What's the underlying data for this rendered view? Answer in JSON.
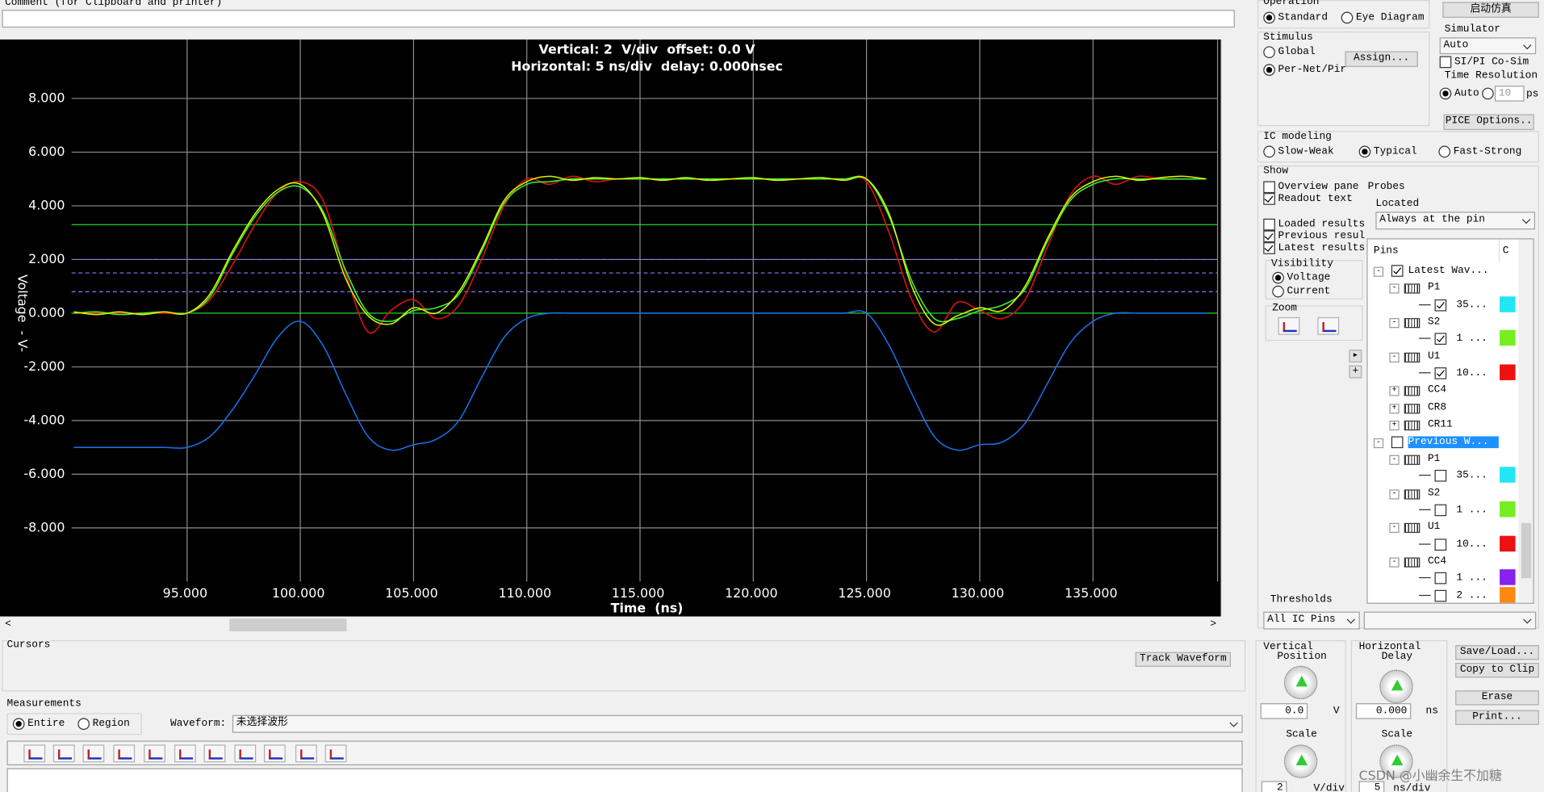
{
  "comment": {
    "label": "Comment (for Clipboard and printer)"
  },
  "operation": {
    "title": "Operation",
    "options": [
      "Standard",
      "Eye Diagram"
    ]
  },
  "run_button": "启动仿真",
  "simulator": {
    "title": "Simulator",
    "select": "Auto",
    "co_sim": "SI/PI Co-Sim",
    "time_resolution": "Time Resolution",
    "auto": "Auto",
    "resolution": "10",
    "unit": "ps",
    "options_button": "PICE Options.."
  },
  "stimulus": {
    "title": "Stimulus",
    "options": [
      "Global",
      "Per-Net/Pir"
    ],
    "assign": "Assign..."
  },
  "ic_modeling": {
    "title": "IC modeling",
    "options": [
      "Slow-Weak",
      "Typical",
      "Fast-Strong"
    ]
  },
  "show": {
    "title": "Show",
    "options": [
      "Overview pane",
      "Readout text"
    ],
    "probes": "Probes",
    "located": "Located",
    "located_select": "Always at the pin",
    "results": [
      "Loaded results",
      "Previous resul",
      "Latest results"
    ]
  },
  "visibility": {
    "title": "Visibility",
    "options": [
      "Voltage",
      "Current"
    ]
  },
  "zoom": {
    "title": "Zoom"
  },
  "tree": {
    "header": [
      "Pins",
      "C"
    ],
    "rows": [
      "Latest Wav...",
      "P1",
      "35...",
      "S2",
      "1 ...",
      "U1",
      "10...",
      "CC4",
      "CR8",
      "CR11",
      "Previous W...",
      "P1",
      "35...",
      "S2",
      "1 ...",
      "U1",
      "10...",
      "CC4",
      "1 ...",
      "2 ..."
    ]
  },
  "thresholds": {
    "title": "Thresholds",
    "select": "All IC Pins"
  },
  "vertical": {
    "title": "Vertical",
    "subtitle": "Position",
    "position": "0.0",
    "unit": "V",
    "scale_label": "Scale",
    "scale": "2",
    "scale_unit": "V/div"
  },
  "horizontal": {
    "title": "Horizontal",
    "subtitle": "Delay",
    "delay": "0.000",
    "unit": "ns",
    "scale_label": "Scale",
    "scale": "5",
    "scale_unit": "ns/div"
  },
  "buttons": [
    "Save/Load...",
    "Copy to Clip",
    "Erase",
    "Print..."
  ],
  "cursors": {
    "title": "Cursors",
    "track": "Track Waveform"
  },
  "measurements": {
    "title": "Measurements",
    "options": [
      "Entire",
      "Region"
    ],
    "waveform_label": "Waveform:",
    "waveform_select": "未选择波形"
  },
  "watermark": "CSDN @小幽余生不加糖",
  "chart_data": {
    "type": "line",
    "title": "Vertical: 2  V/div  offset: 0.0 V",
    "subtitle": "Horizontal: 5 ns/div  delay: 0.000nsec",
    "x_label": "Time  (ns)",
    "y_label": "Voltage  - V-",
    "x": [
      90,
      91,
      92,
      93,
      94,
      95,
      96,
      97,
      98,
      99,
      100,
      101,
      102,
      103,
      104,
      105,
      106,
      107,
      108,
      109,
      110,
      111,
      112,
      113,
      114,
      115,
      116,
      117,
      118,
      119,
      120,
      121,
      122,
      123,
      124,
      125,
      126,
      127,
      128,
      129,
      130,
      131,
      132,
      133,
      134,
      135,
      136,
      137,
      138,
      139,
      140
    ],
    "series": [
      {
        "color": "#1a6ee0",
        "values": [
          -5,
          -5,
          -5,
          -5,
          -5,
          -5,
          -4.6,
          -3.6,
          -2.3,
          -0.9,
          -0.3,
          -1.2,
          -3.0,
          -4.6,
          -5.1,
          -4.9,
          -4.7,
          -4.0,
          -2.4,
          -0.9,
          -0.2,
          0,
          0,
          0,
          0,
          0,
          0,
          0,
          0,
          0,
          0,
          0,
          0,
          0,
          0,
          0,
          -1.2,
          -3.0,
          -4.6,
          -5.1,
          -4.9,
          -4.8,
          -4.1,
          -2.6,
          -1.1,
          -0.3,
          0,
          0,
          0,
          0,
          0
        ]
      },
      {
        "color": "#e01010",
        "values": [
          0,
          0,
          0,
          0,
          0,
          0,
          0.5,
          1.8,
          3.3,
          4.5,
          4.9,
          4.2,
          1.5,
          -0.7,
          0.1,
          0.5,
          -0.2,
          0.3,
          2.0,
          4.0,
          5.0,
          4.8,
          5.1,
          4.9,
          5.0,
          5.0,
          5.0,
          5.0,
          5.0,
          5.0,
          5.0,
          5.0,
          5.0,
          5.0,
          5.0,
          4.9,
          3.0,
          0.5,
          -0.7,
          0.4,
          0.1,
          -0.2,
          0.5,
          2.5,
          4.4,
          5.1,
          4.8,
          5.1,
          5.0,
          5.0,
          5.0
        ]
      },
      {
        "color": "#3cf03c",
        "values": [
          0,
          0.05,
          -0.05,
          0,
          0.05,
          0,
          0.6,
          2.2,
          3.6,
          4.5,
          4.7,
          3.8,
          1.6,
          0.0,
          -0.3,
          0.1,
          0.2,
          0.7,
          2.3,
          4.1,
          4.8,
          4.9,
          5.0,
          5.0,
          5.0,
          5.0,
          5.0,
          5.0,
          5.0,
          5.0,
          5.0,
          5.0,
          5.0,
          5.0,
          5.0,
          5.0,
          3.6,
          1.2,
          -0.2,
          -0.2,
          0.1,
          0.3,
          0.9,
          2.7,
          4.2,
          4.8,
          5.0,
          5.0,
          5.0,
          5.0,
          5.0
        ]
      },
      {
        "color": "#d8f000",
        "values": [
          0.05,
          -0.05,
          0.05,
          -0.05,
          0.05,
          0,
          0.7,
          2.3,
          3.7,
          4.6,
          4.8,
          3.7,
          1.3,
          -0.1,
          -0.4,
          0.2,
          0.0,
          0.8,
          2.4,
          4.2,
          4.9,
          5.1,
          4.95,
          5.05,
          5.0,
          5.05,
          4.95,
          5.05,
          4.95,
          5.0,
          5.05,
          4.95,
          5.0,
          5.05,
          4.95,
          5.0,
          3.7,
          1.0,
          -0.4,
          -0.1,
          0.2,
          0.1,
          1.0,
          2.8,
          4.3,
          4.9,
          5.1,
          4.95,
          5.05,
          5.1,
          5.0
        ]
      }
    ],
    "xlim": [
      89.9,
      140.5
    ],
    "ylim": [
      -10,
      10.2
    ],
    "xticks": [
      {
        "value": 95,
        "label": "95.000"
      },
      {
        "value": 100,
        "label": "100.000"
      },
      {
        "value": 105,
        "label": "105.000"
      },
      {
        "value": 110,
        "label": "110.000"
      },
      {
        "value": 115,
        "label": "115.000"
      },
      {
        "value": 120,
        "label": "120.000"
      },
      {
        "value": 125,
        "label": "125.000"
      },
      {
        "value": 130,
        "label": "130.000"
      },
      {
        "value": 135,
        "label": "135.000"
      }
    ],
    "yticks": [
      {
        "value": -8,
        "label": "-8.000"
      },
      {
        "value": -6,
        "label": "-6.000"
      },
      {
        "value": -4,
        "label": "-4.000"
      },
      {
        "value": -2,
        "label": "-2.000"
      },
      {
        "value": 0,
        "label": "0.000"
      },
      {
        "value": 2,
        "label": "2.000"
      },
      {
        "value": 4,
        "label": "4.000"
      },
      {
        "value": 6,
        "label": "6.000"
      },
      {
        "value": 8,
        "label": "8.000"
      }
    ],
    "grid": true,
    "grid_color": "#8c8c8c",
    "background": "#000000",
    "reference_lines": [
      {
        "value": 3.3,
        "color": "#22dd22",
        "dashed": false
      },
      {
        "value": 2.0,
        "color": "#8080ff",
        "dashed": true
      },
      {
        "value": 1.5,
        "color": "#8080ff",
        "dashed": true
      },
      {
        "value": 0.8,
        "color": "#8080ff",
        "dashed": true
      },
      {
        "value": 0,
        "color": "#22dd22",
        "dashed": false
      }
    ]
  }
}
